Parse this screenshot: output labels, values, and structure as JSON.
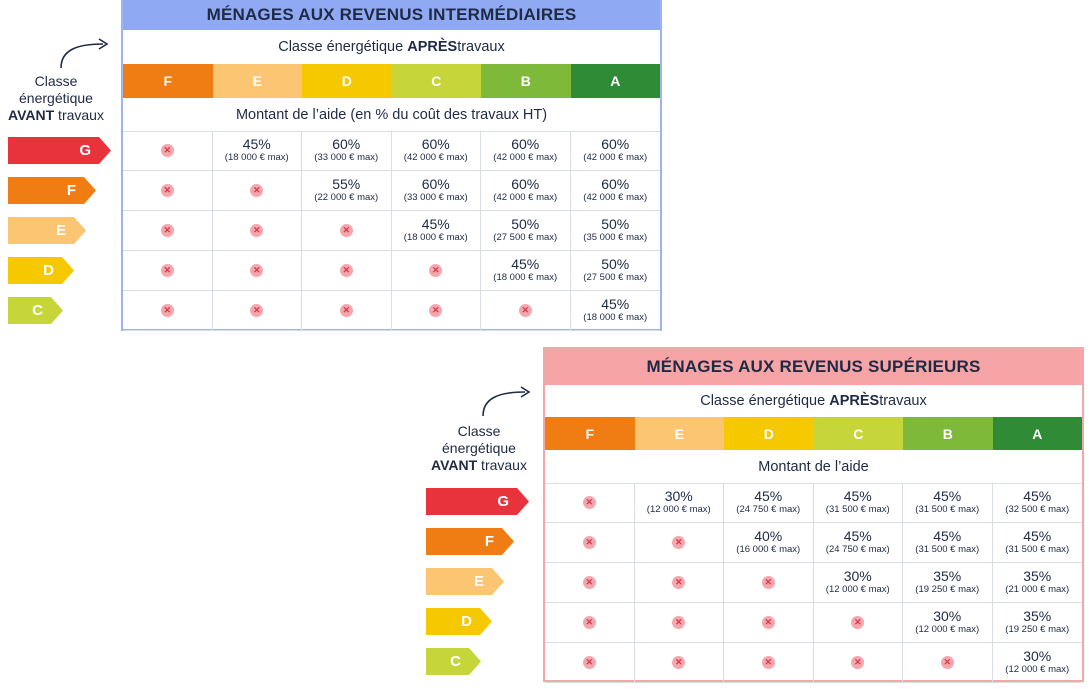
{
  "classes_after": [
    "F",
    "E",
    "D",
    "C",
    "B",
    "A"
  ],
  "class_colors": {
    "G": "#e8323c",
    "F": "#f07c14",
    "E": "#fbc572",
    "D": "#f5c800",
    "C": "#c6d63a",
    "B": "#7fb93a",
    "A": "#2f8b35"
  },
  "after_label": {
    "prefix": "Classe énergétique ",
    "bold": "APRÈS",
    "suffix": " travaux"
  },
  "before_label": {
    "line1": "Classe",
    "line2": "énergétique",
    "bold": "AVANT",
    "suffix": " travaux"
  },
  "before_classes": [
    "G",
    "F",
    "E",
    "D",
    "C"
  ],
  "panels": [
    {
      "title": "MÉNAGES AUX REVENUS INTERMÉDIAIRES",
      "header_color": "#8fa9f3",
      "border_color": "#9db4f4",
      "amount_label": "Montant de l’aide (en % du coût des travaux HT)",
      "rows": [
        [
          null,
          {
            "pct": "45%",
            "max": "(18 000 € max)"
          },
          {
            "pct": "60%",
            "max": "(33 000 € max)"
          },
          {
            "pct": "60%",
            "max": "(42 000 € max)"
          },
          {
            "pct": "60%",
            "max": "(42 000 € max)"
          },
          {
            "pct": "60%",
            "max": "(42 000 € max)"
          }
        ],
        [
          null,
          null,
          {
            "pct": "55%",
            "max": "(22 000 € max)"
          },
          {
            "pct": "60%",
            "max": "(33 000 € max)"
          },
          {
            "pct": "60%",
            "max": "(42 000 € max)"
          },
          {
            "pct": "60%",
            "max": "(42 000 € max)"
          }
        ],
        [
          null,
          null,
          null,
          {
            "pct": "45%",
            "max": "(18 000 € max)"
          },
          {
            "pct": "50%",
            "max": "(27 500 € max)"
          },
          {
            "pct": "50%",
            "max": "(35 000 € max)"
          }
        ],
        [
          null,
          null,
          null,
          null,
          {
            "pct": "45%",
            "max": "(18 000 € max)"
          },
          {
            "pct": "50%",
            "max": "(27 500 € max)"
          }
        ],
        [
          null,
          null,
          null,
          null,
          null,
          {
            "pct": "45%",
            "max": "(18 000 € max)"
          }
        ]
      ]
    },
    {
      "title": "MÉNAGES AUX REVENUS SUPÉRIEURS",
      "header_color": "#f7a4a6",
      "border_color": "#f4a7a9",
      "amount_label": "Montant de l’aide",
      "rows": [
        [
          null,
          {
            "pct": "30%",
            "max": "(12 000 € max)"
          },
          {
            "pct": "45%",
            "max": "(24 750 € max)"
          },
          {
            "pct": "45%",
            "max": "(31 500 € max)"
          },
          {
            "pct": "45%",
            "max": "(31 500 € max)"
          },
          {
            "pct": "45%",
            "max": "(32 500 € max)"
          }
        ],
        [
          null,
          null,
          {
            "pct": "40%",
            "max": "(16 000 € max)"
          },
          {
            "pct": "45%",
            "max": "(24 750 € max)"
          },
          {
            "pct": "45%",
            "max": "(31 500 € max)"
          },
          {
            "pct": "45%",
            "max": "(31 500 € max)"
          }
        ],
        [
          null,
          null,
          null,
          {
            "pct": "30%",
            "max": "(12 000 € max)"
          },
          {
            "pct": "35%",
            "max": "(19 250 € max)"
          },
          {
            "pct": "35%",
            "max": "(21 000 € max)"
          }
        ],
        [
          null,
          null,
          null,
          null,
          {
            "pct": "30%",
            "max": "(12 000 € max)"
          },
          {
            "pct": "35%",
            "max": "(19 250 € max)"
          }
        ],
        [
          null,
          null,
          null,
          null,
          null,
          {
            "pct": "30%",
            "max": "(12 000 € max)"
          }
        ]
      ]
    }
  ]
}
